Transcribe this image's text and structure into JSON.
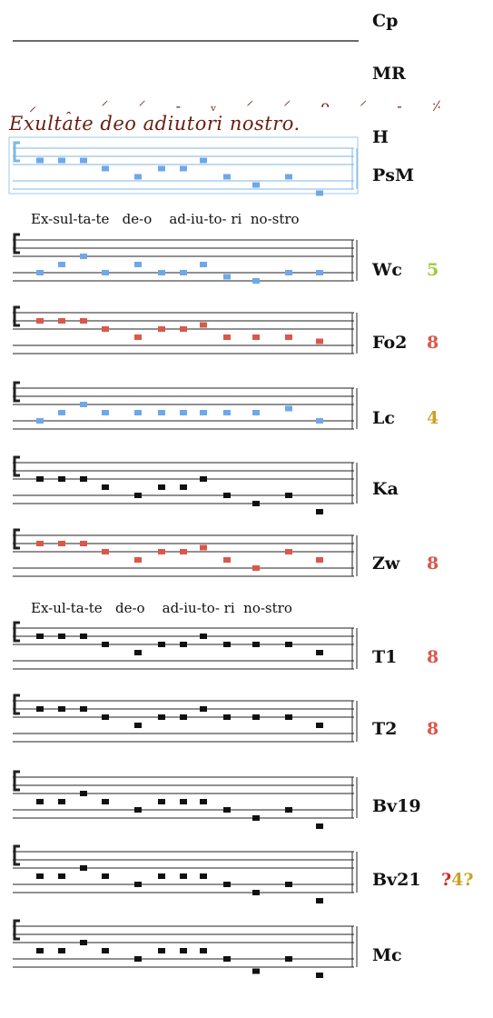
{
  "manuscript_text": "Exultate deo adiutori nostro.",
  "neume_marks": "⸝ ꞈ ⸍ ⸍ - ᵥ ⸍ ⸍ ᴖ ⸍ - ⸓",
  "lyrics_upper": "Ex-sul-ta-te   de-o    ad-iu-to- ri  no-stro",
  "lyrics_lower": "Ex-ul-ta-te   de-o    ad-iu-to- ri  no-stro",
  "colors": {
    "blue": "#6fa8e8",
    "red": "#d9584a",
    "black": "#111111",
    "green": "#9ecb3a",
    "olive": "#c9a227"
  },
  "rows": [
    {
      "label": "Cp"
    },
    {
      "label": "MR"
    },
    {
      "label": "H"
    },
    {
      "label": "PsM",
      "color": "blue"
    },
    {
      "label": "Wc",
      "mode": "5",
      "mode_color": "green",
      "color": "blue"
    },
    {
      "label": "Fo2",
      "mode": "8",
      "mode_color": "red",
      "color": "red"
    },
    {
      "label": "Lc",
      "mode": "4",
      "mode_color": "olive",
      "color": "blue"
    },
    {
      "label": "Ka",
      "color": "black"
    },
    {
      "label": "Zw",
      "mode": "8",
      "mode_color": "red",
      "color": "red"
    },
    {
      "label": "T1",
      "mode": "8",
      "mode_color": "red",
      "color": "black"
    },
    {
      "label": "T2",
      "mode": "8",
      "mode_color": "red",
      "color": "black"
    },
    {
      "label": "Bv19",
      "color": "black"
    },
    {
      "label": "Bv21",
      "mode_q1": "?",
      "mode": "4",
      "mode_q2": "?",
      "color": "black"
    },
    {
      "label": "Mc",
      "color": "black"
    }
  ]
}
